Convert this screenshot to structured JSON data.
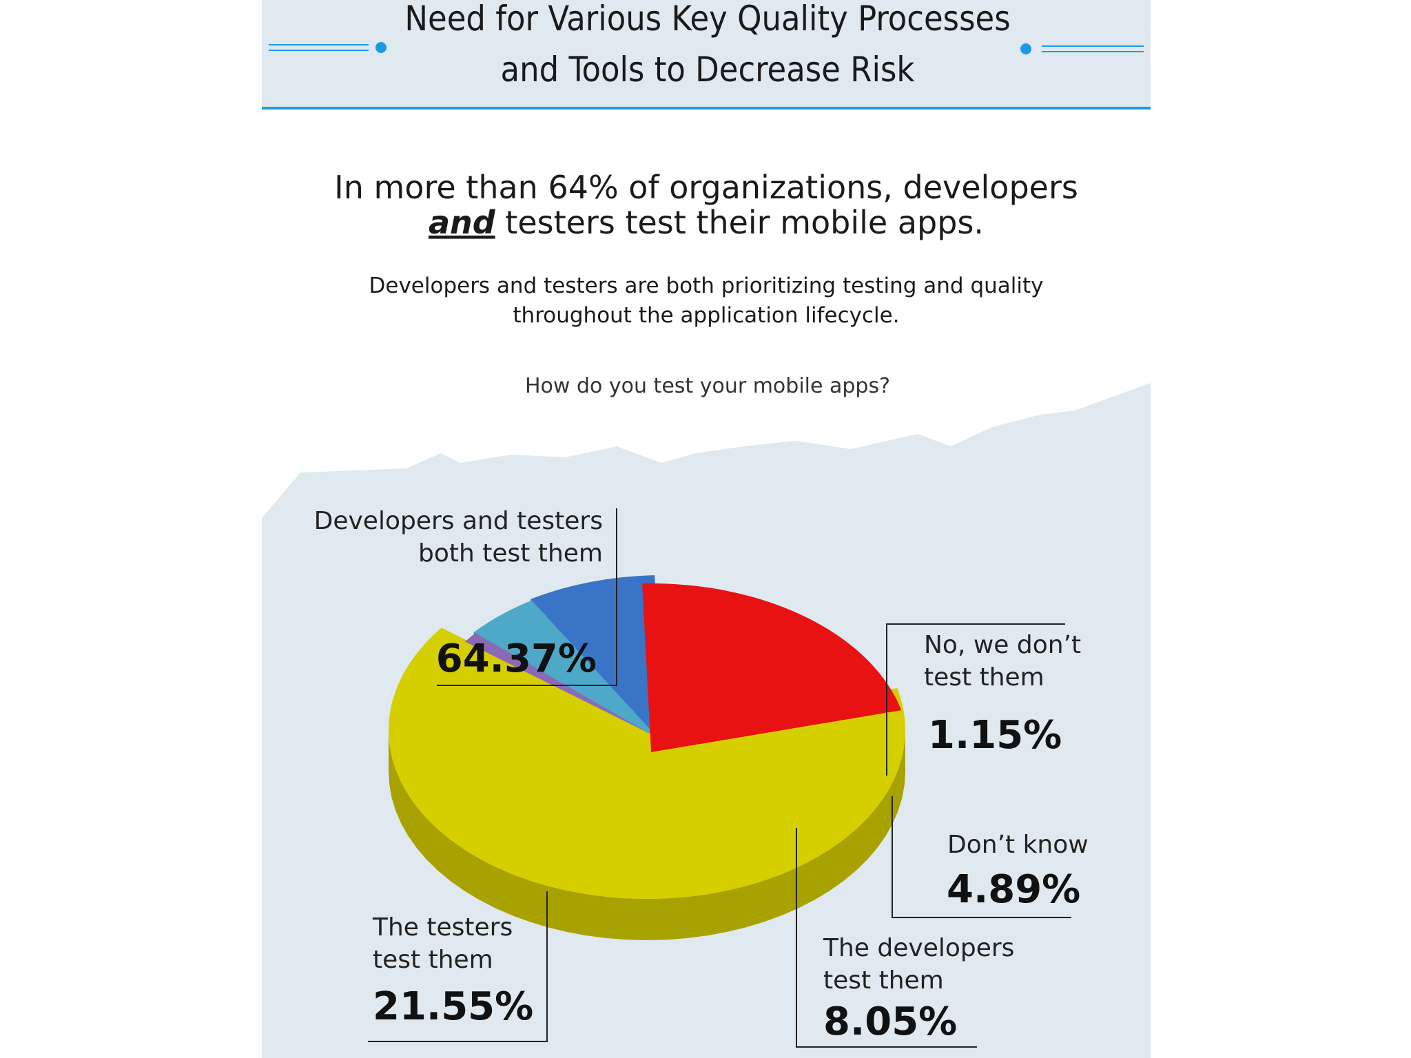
{
  "header": {
    "title_line1": "Need for Various Key Quality Processes",
    "title_line2": "and Tools to Decrease Risk"
  },
  "headline": {
    "line1": "In more than 64% of organizations, developers",
    "line2_em": "and",
    "line2_rest": " testers test their mobile apps."
  },
  "subheadline": {
    "line1": "Developers and testers are both prioritizing testing and quality",
    "line2": "throughout the application lifecycle."
  },
  "question": "How do you test your mobile apps?",
  "colors": {
    "header_bg": "#dfe9ef",
    "accent": "#1e9be0",
    "panel_bg": "#dfe9ef"
  },
  "chart_data": {
    "type": "pie",
    "title": "How do you test your mobile apps?",
    "slices": [
      {
        "label_line1": "Developers and testers",
        "label_line2": "both test them",
        "value": 64.37,
        "value_label": "64.37%",
        "color": "#d6cf00",
        "side": "#a8a200"
      },
      {
        "label_line1": "No, we don’t",
        "label_line2": "test them",
        "value": 1.15,
        "value_label": "1.15%",
        "color": "#8a6ab4",
        "side": "#4e3d70"
      },
      {
        "label_line1": "Don’t know",
        "label_line2": "",
        "value": 4.89,
        "value_label": "4.89%",
        "color": "#4ea9c8",
        "side": "#2f6f87"
      },
      {
        "label_line1": "The developers",
        "label_line2": "test them",
        "value": 8.05,
        "value_label": "8.05%",
        "color": "#3a74c6",
        "side": "#27477a"
      },
      {
        "label_line1": "The testers",
        "label_line2": "test them",
        "value": 21.55,
        "value_label": "21.55%",
        "color": "#e81212",
        "side": "#7b2a2e"
      }
    ]
  }
}
